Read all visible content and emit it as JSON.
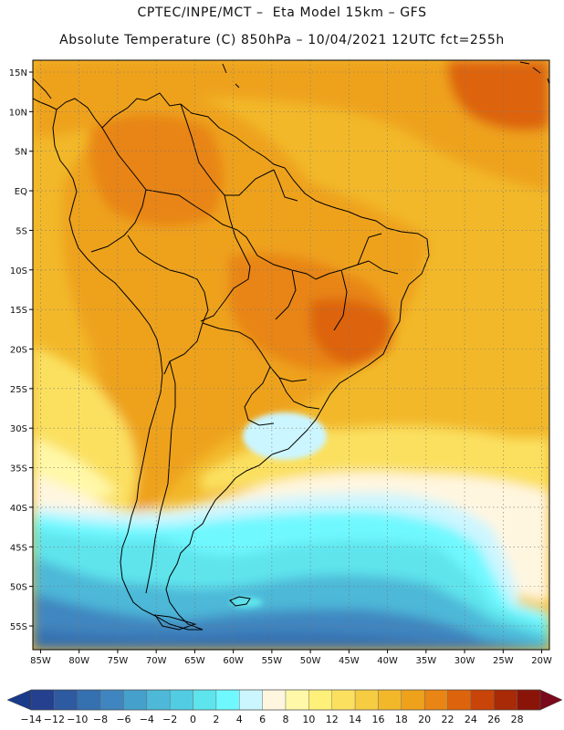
{
  "title": {
    "line1": "CPTEC/INPE/MCT –  Eta Model 15km – GFS",
    "line2": "Absolute Temperature (C) 850hPa – 10/04/2021 12UTC fct=255h"
  },
  "map": {
    "variable": "Absolute Temperature",
    "units": "C",
    "level": "850hPa",
    "lon_range": [
      -86,
      -19
    ],
    "lat_range": [
      -58,
      16.5
    ],
    "lon_ticks": [
      {
        "value": -85,
        "label": "85W"
      },
      {
        "value": -80,
        "label": "80W"
      },
      {
        "value": -75,
        "label": "75W"
      },
      {
        "value": -70,
        "label": "70W"
      },
      {
        "value": -65,
        "label": "65W"
      },
      {
        "value": -60,
        "label": "60W"
      },
      {
        "value": -55,
        "label": "55W"
      },
      {
        "value": -50,
        "label": "50W"
      },
      {
        "value": -45,
        "label": "45W"
      },
      {
        "value": -40,
        "label": "40W"
      },
      {
        "value": -35,
        "label": "35W"
      },
      {
        "value": -30,
        "label": "30W"
      },
      {
        "value": -25,
        "label": "25W"
      },
      {
        "value": -20,
        "label": "20W"
      }
    ],
    "lat_ticks": [
      {
        "value": 15,
        "label": "15N"
      },
      {
        "value": 10,
        "label": "10N"
      },
      {
        "value": 5,
        "label": "5N"
      },
      {
        "value": 0,
        "label": "EQ"
      },
      {
        "value": -5,
        "label": "5S"
      },
      {
        "value": -10,
        "label": "10S"
      },
      {
        "value": -15,
        "label": "15S"
      },
      {
        "value": -20,
        "label": "20S"
      },
      {
        "value": -25,
        "label": "25S"
      },
      {
        "value": -30,
        "label": "30S"
      },
      {
        "value": -35,
        "label": "35S"
      },
      {
        "value": -40,
        "label": "40S"
      },
      {
        "value": -45,
        "label": "45S"
      },
      {
        "value": -50,
        "label": "50S"
      },
      {
        "value": -55,
        "label": "55S"
      }
    ]
  },
  "colorbar": {
    "labels": [
      "-14",
      "-12",
      "-10",
      "-8",
      "-6",
      "-4",
      "-2",
      "0",
      "2",
      "4",
      "6",
      "8",
      "10",
      "12",
      "14",
      "16",
      "18",
      "20",
      "22",
      "24",
      "26",
      "28"
    ],
    "under_color": "#1a3a8a",
    "over_color": "#7a0a1c",
    "colors": [
      "#24408f",
      "#2d5aa0",
      "#3570b0",
      "#3f86c0",
      "#46a0cc",
      "#4db8d8",
      "#52cce2",
      "#5ee4ec",
      "#6ff8ff",
      "#ccf6ff",
      "#fff6e0",
      "#fff8a8",
      "#fff07a",
      "#fbe060",
      "#f5cc42",
      "#f2b82a",
      "#eea21c",
      "#e88514",
      "#dd640c",
      "#c84408",
      "#a82a06",
      "#8a1408"
    ]
  },
  "field_colors": {
    "ocean_warm": "#f2b82a",
    "ocean_hot": "#eea21c",
    "land_warm": "#eea21c",
    "land_hot": "#e88514",
    "hotspot": "#dd640c",
    "yellow": "#fbe060",
    "light_yellow": "#fff8a8",
    "cream": "#fff6e0",
    "pale_cyan": "#ccf6ff",
    "cyan": "#6ff8ff",
    "cyan2": "#5ee4ec",
    "blue1": "#4db8d8",
    "blue2": "#3f86c0",
    "blue3": "#3570b0"
  }
}
